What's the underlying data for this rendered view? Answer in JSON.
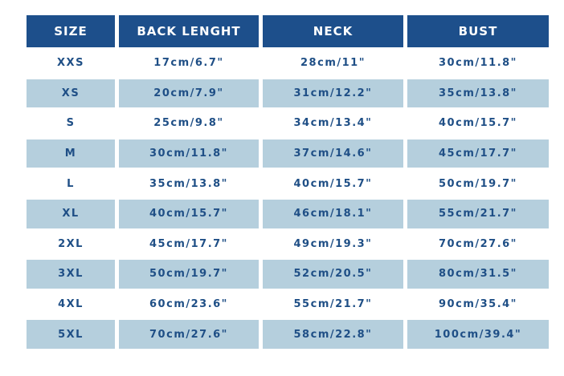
{
  "table": {
    "header": [
      "SIZE",
      "BACK LENGHT",
      "NECK",
      "BUST"
    ],
    "rows": [
      [
        "XXS",
        "17cm/6.7\"",
        "28cm/11\"",
        "30cm/11.8\""
      ],
      [
        "XS",
        "20cm/7.9\"",
        "31cm/12.2\"",
        "35cm/13.8\""
      ],
      [
        "S",
        "25cm/9.8\"",
        "34cm/13.4\"",
        "40cm/15.7\""
      ],
      [
        "M",
        "30cm/11.8\"",
        "37cm/14.6\"",
        "45cm/17.7\""
      ],
      [
        "L",
        "35cm/13.8\"",
        "40cm/15.7\"",
        "50cm/19.7\""
      ],
      [
        "XL",
        "40cm/15.7\"",
        "46cm/18.1\"",
        "55cm/21.7\""
      ],
      [
        "2XL",
        "45cm/17.7\"",
        "49cm/19.3\"",
        "70cm/27.6\""
      ],
      [
        "3XL",
        "50cm/19.7\"",
        "52cm/20.5\"",
        "80cm/31.5\""
      ],
      [
        "4XL",
        "60cm/23.6\"",
        "55cm/21.7\"",
        "90cm/35.4\""
      ],
      [
        "5XL",
        "70cm/27.6\"",
        "58cm/22.8\"",
        "100cm/39.4\""
      ]
    ]
  }
}
